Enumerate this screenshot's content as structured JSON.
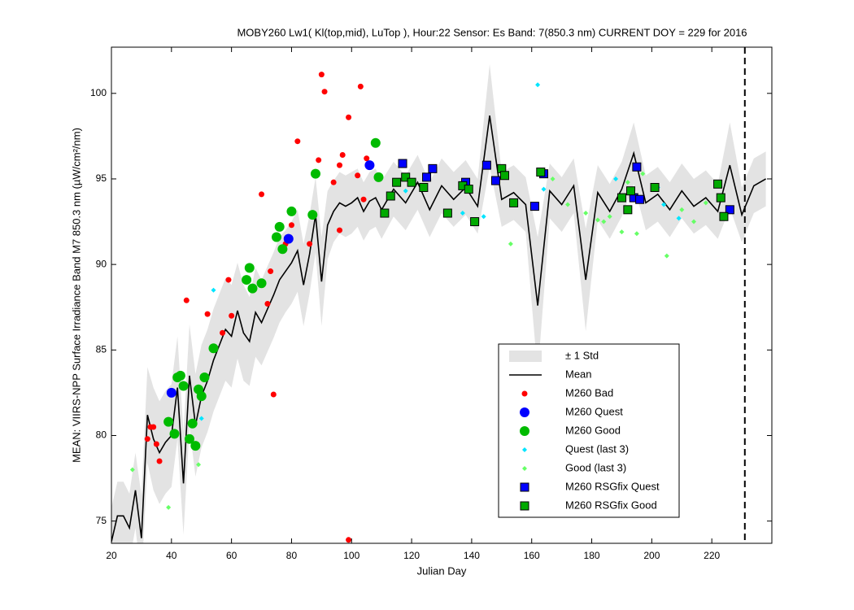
{
  "chart_data": {
    "type": "scatter",
    "title": "MOBY260   Lw1( Kl(top,mid), LuTop ),   Hour:22 Sensor: Es Band: 7(850.3 nm)   CURRENT DOY = 229 for 2016",
    "xlabel": "Julian Day",
    "ylabel": "MEAN: VIIRS-NPP Surface Irradiance Band M7 850.3 nm (µW/cm²/nm)",
    "xlim": [
      20,
      240
    ],
    "ylim": [
      73.7,
      102.7
    ],
    "xticks": [
      20,
      40,
      60,
      80,
      100,
      120,
      140,
      160,
      180,
      200,
      220
    ],
    "yticks": [
      75,
      80,
      85,
      90,
      95,
      100
    ],
    "vline_x": 231,
    "std": {
      "name": "± 1 Std",
      "color": "#e3e3e3",
      "values": [
        2,
        2,
        2,
        2,
        2.2,
        2.5,
        2.8,
        3,
        3,
        3,
        3,
        3,
        3,
        3,
        3,
        3,
        3,
        3,
        3,
        3,
        3,
        2.8,
        2.8,
        2.6,
        2.6,
        2.5,
        2.5,
        2.5,
        2.5,
        2.4,
        2.4,
        2.4,
        2.4,
        2.3,
        2.2,
        2.6,
        2,
        1.8,
        1.8,
        1.8,
        1.8,
        1.7,
        1.7,
        1.7,
        1.7,
        1.7,
        1.6,
        1.6,
        1.6,
        1.6,
        1.6,
        1.6,
        1.6,
        1.6,
        3,
        1.6,
        1.6,
        1.6,
        4,
        1.6,
        1.6,
        1.6,
        3,
        1.6,
        1.6,
        1.6,
        1.8,
        1.6,
        1.6,
        1.6,
        1.6,
        1.6,
        1.6,
        1.6,
        2.5,
        1.6,
        1.6,
        1.6
      ]
    },
    "mean": {
      "name": "Mean",
      "color": "#000000",
      "x": [
        20,
        22,
        24,
        26,
        28,
        30,
        32,
        34,
        36,
        38,
        40,
        42,
        44,
        46,
        48,
        50,
        52,
        54,
        56,
        58,
        60,
        62,
        64,
        66,
        68,
        70,
        72,
        74,
        76,
        78,
        80,
        82,
        84,
        86,
        88,
        90,
        92,
        94,
        96,
        98,
        100,
        102,
        104,
        106,
        108,
        110,
        114,
        118,
        122,
        126,
        130,
        134,
        138,
        142,
        146,
        150,
        154,
        158,
        162,
        166,
        170,
        174,
        178,
        182,
        186,
        190,
        194,
        198,
        202,
        206,
        210,
        214,
        218,
        222,
        226,
        230,
        234,
        238
      ],
      "values": [
        73.8,
        75.3,
        75.3,
        74.6,
        76.8,
        74,
        81.2,
        79.8,
        79,
        79.6,
        80,
        82.8,
        77.2,
        83.5,
        80.6,
        82.3,
        83.2,
        84.4,
        85.3,
        86.2,
        85.8,
        87.3,
        86,
        85.5,
        87.2,
        86.6,
        87.4,
        88.2,
        89.1,
        89.6,
        90.1,
        90.8,
        88.8,
        90.6,
        92.9,
        89,
        92.3,
        93.1,
        93.6,
        93.4,
        93.6,
        93.9,
        93.1,
        93.7,
        93.9,
        93.2,
        94.4,
        93.6,
        94.8,
        93.2,
        94.6,
        93.8,
        94.5,
        93.4,
        98.7,
        93.8,
        94.2,
        93.5,
        87.6,
        94.3,
        93.5,
        94.6,
        89.1,
        94.2,
        93.1,
        94.4,
        96.5,
        93.6,
        94.1,
        93.2,
        94.3,
        93.4,
        93.9,
        93.1,
        95.8,
        92.9,
        94.6,
        95.0
      ]
    },
    "series": [
      {
        "name": "M260 Bad",
        "color": "#ff0000",
        "marker": "circle",
        "size": 3.5,
        "x": [
          32,
          33,
          34,
          35,
          36,
          45,
          52,
          57,
          59,
          60,
          70,
          72,
          73,
          74,
          78,
          80,
          82,
          86,
          89,
          90,
          91,
          94,
          96,
          96,
          97,
          99,
          99,
          102,
          103,
          104,
          105
        ],
        "values": [
          79.8,
          80.5,
          80.5,
          79.5,
          78.5,
          87.9,
          87.1,
          86,
          89.1,
          87,
          94.1,
          87.7,
          89.6,
          82.4,
          91.2,
          92.3,
          97.2,
          91.2,
          96.1,
          101.1,
          100.1,
          94.8,
          92,
          95.8,
          96.4,
          98.6,
          73.9,
          95.2,
          100.4,
          93.8,
          96.2
        ]
      },
      {
        "name": "M260 Quest",
        "color": "#0000ff",
        "marker": "circle",
        "size": 6,
        "x": [
          40,
          79,
          106
        ],
        "values": [
          82.5,
          91.5,
          95.8
        ]
      },
      {
        "name": "M260 Good",
        "color": "#00bb00",
        "marker": "circle",
        "size": 6,
        "x": [
          39,
          41,
          42,
          43,
          44,
          46,
          47,
          48,
          49,
          50,
          51,
          54,
          65,
          66,
          67,
          70,
          75,
          76,
          77,
          80,
          87,
          88,
          108,
          109
        ],
        "values": [
          80.8,
          80.1,
          83.4,
          83.5,
          82.9,
          79.8,
          80.7,
          79.4,
          82.7,
          82.3,
          83.4,
          85.1,
          89.1,
          89.8,
          88.6,
          88.9,
          91.6,
          92.2,
          90.9,
          93.1,
          92.9,
          95.3,
          97.1,
          95.1
        ]
      },
      {
        "name": "Quest (last 3)",
        "color": "#00e5ff",
        "marker": "diamond",
        "size": 3,
        "x": [
          50,
          54,
          118,
          137,
          144,
          162,
          164,
          188,
          202,
          204,
          209
        ],
        "values": [
          81,
          88.5,
          94.3,
          93,
          92.8,
          100.5,
          94.4,
          95,
          94.5,
          93.5,
          92.7
        ]
      },
      {
        "name": "Good (last 3)",
        "color": "#66ff66",
        "marker": "diamond",
        "size": 3,
        "x": [
          27,
          39,
          49,
          153,
          167,
          172,
          178,
          182,
          184,
          186,
          190,
          192,
          195,
          197,
          205,
          210,
          214,
          218
        ],
        "values": [
          78,
          75.8,
          78.3,
          91.2,
          95,
          93.5,
          93,
          92.6,
          92.5,
          92.8,
          91.9,
          94.8,
          91.8,
          95.3,
          90.5,
          93.2,
          92.5,
          93.6
        ]
      },
      {
        "name": "M260 RSGfix Quest",
        "color": "#0000ff",
        "marker": "square",
        "size": 5,
        "x": [
          117,
          125,
          127,
          138,
          145,
          148,
          161,
          164,
          194,
          195,
          196,
          226
        ],
        "values": [
          95.9,
          95.1,
          95.6,
          94.8,
          95.8,
          94.9,
          93.4,
          95.3,
          93.9,
          95.7,
          93.8,
          93.2
        ]
      },
      {
        "name": "M260 RSGfix Good",
        "color": "#00aa00",
        "marker": "square",
        "size": 5,
        "x": [
          111,
          113,
          115,
          118,
          120,
          124,
          132,
          137,
          139,
          141,
          150,
          151,
          154,
          163,
          190,
          192,
          193,
          201,
          222,
          223,
          224
        ],
        "values": [
          93,
          94,
          94.8,
          95.1,
          94.8,
          94.5,
          93,
          94.6,
          94.4,
          92.5,
          95.6,
          95.2,
          93.6,
          95.4,
          93.9,
          93.2,
          94.3,
          94.5,
          94.7,
          93.9,
          92.8
        ]
      }
    ]
  }
}
